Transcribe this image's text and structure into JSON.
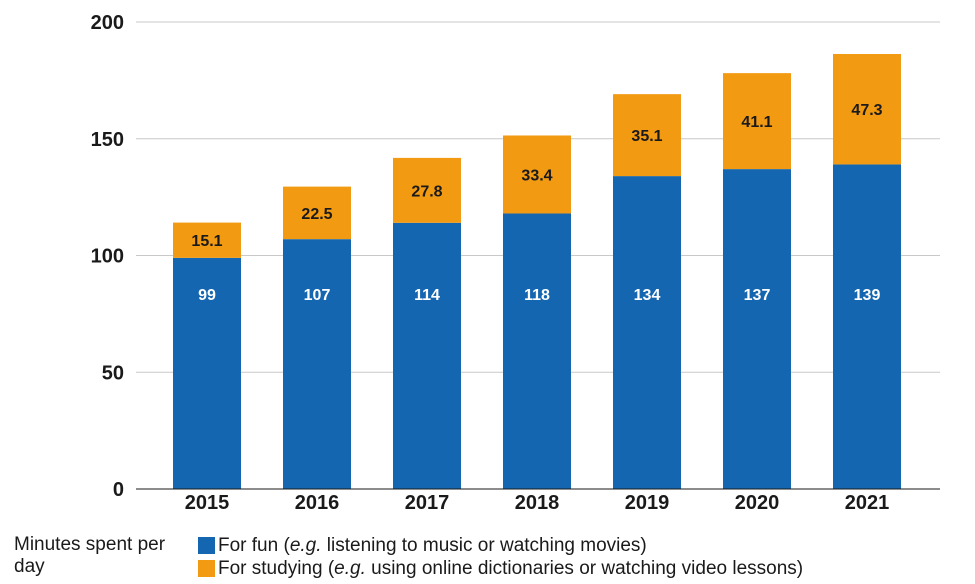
{
  "chart_data": {
    "type": "bar",
    "stacked": true,
    "categories": [
      "2015",
      "2016",
      "2017",
      "2018",
      "2019",
      "2020",
      "2021"
    ],
    "series": [
      {
        "name": "For fun (e.g. listening to music or watching movies)",
        "values": [
          99,
          107,
          114,
          118,
          134,
          137,
          139
        ],
        "color": "#1466b0"
      },
      {
        "name": "For studying (e.g. using online dictionaries or watching video lessons)",
        "values": [
          15.1,
          22.5,
          27.8,
          33.4,
          35.1,
          41.1,
          47.3
        ],
        "color": "#f29a12"
      }
    ],
    "value_labels": {
      "fun": [
        "99",
        "107",
        "114",
        "118",
        "134",
        "137",
        "139"
      ],
      "study": [
        "15.1",
        "22.5",
        "27.8",
        "33.4",
        "35.1",
        "41.1",
        "47.3"
      ]
    },
    "ylim": [
      0,
      200
    ],
    "yticks": [
      "0",
      "50",
      "100",
      "150",
      "200"
    ],
    "grid": true,
    "legend_position": "bottom"
  },
  "legend": {
    "title": "Minutes spent per day",
    "fun_prefix": "For fun (",
    "fun_italic": "e.g.",
    "fun_suffix": " listening to music or watching movies)",
    "study_prefix": "For studying (",
    "study_italic": "e.g.",
    "study_suffix": " using online dictionaries or watching video lessons)"
  },
  "colors": {
    "fun": "#1466b0",
    "study": "#f29a12",
    "grid": "#c8c8c8",
    "text": "#1a1a1a"
  }
}
